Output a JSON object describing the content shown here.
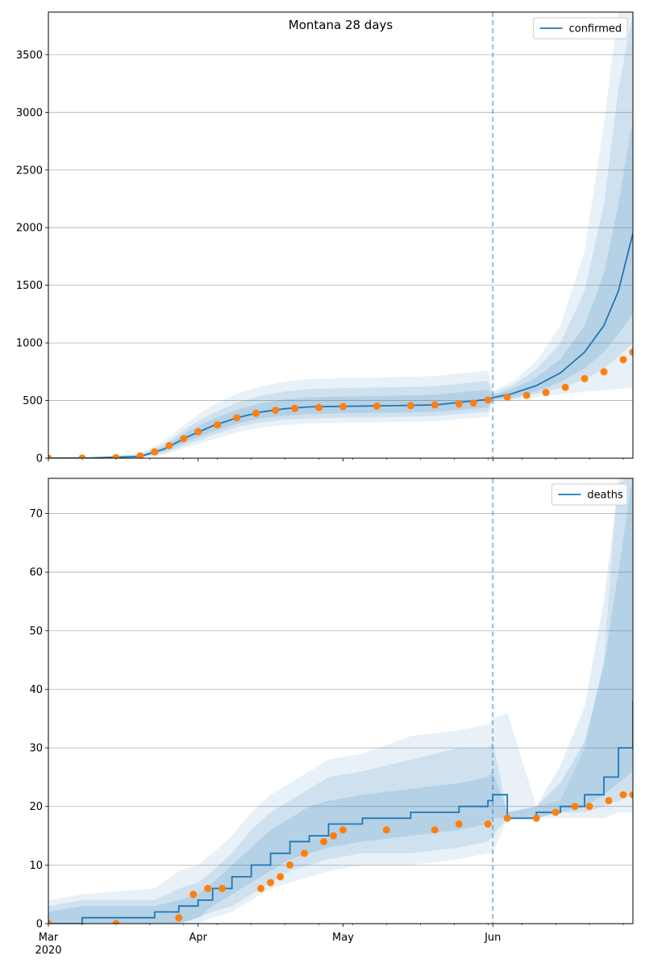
{
  "chart_data": [
    {
      "type": "line",
      "title": "Montana 28 days",
      "xlabel": "",
      "ylabel": "",
      "x_range": [
        "2020-03-01",
        "2020-06-30"
      ],
      "ylim": [
        0,
        3870
      ],
      "yticks": [
        0,
        500,
        1000,
        1500,
        2000,
        2500,
        3000,
        3500
      ],
      "grid": "horizontal",
      "legend": {
        "position": "top-right",
        "entries": [
          "confirmed"
        ]
      },
      "forecast_start": "2020-06-01",
      "series": [
        {
          "name": "confirmed",
          "kind": "line",
          "color": "#1f77b4",
          "x": [
            "2020-03-01",
            "2020-03-10",
            "2020-03-20",
            "2020-03-25",
            "2020-03-30",
            "2020-04-04",
            "2020-04-09",
            "2020-04-14",
            "2020-04-19",
            "2020-04-24",
            "2020-05-01",
            "2020-05-10",
            "2020-05-20",
            "2020-05-31",
            "2020-06-01",
            "2020-06-05",
            "2020-06-10",
            "2020-06-15",
            "2020-06-20",
            "2020-06-24",
            "2020-06-27",
            "2020-06-30"
          ],
          "values": [
            0,
            2,
            15,
            80,
            190,
            280,
            350,
            400,
            430,
            445,
            450,
            455,
            462,
            510,
            525,
            560,
            630,
            740,
            920,
            1150,
            1450,
            1950
          ],
          "bands": [
            {
              "upper": [
                10,
                12,
                40,
                150,
                320,
                460,
                560,
                620,
                665,
                685,
                695,
                702,
                712,
                760,
                580,
                660,
                840,
                1150,
                1800,
                2900,
                3870,
                3870
              ],
              "lower": [
                0,
                0,
                2,
                30,
                100,
                160,
                225,
                265,
                290,
                300,
                308,
                312,
                322,
                360,
                490,
                500,
                530,
                555,
                575,
                590,
                600,
                610
              ]
            },
            {
              "upper": [
                6,
                8,
                30,
                120,
                270,
                390,
                480,
                540,
                580,
                600,
                608,
                614,
                624,
                670,
                560,
                630,
                770,
                1000,
                1450,
                2200,
                3200,
                3870
              ],
              "lower": [
                0,
                0,
                5,
                45,
                125,
                200,
                270,
                310,
                335,
                345,
                352,
                356,
                366,
                405,
                500,
                515,
                560,
                610,
                680,
                780,
                880,
                1000
              ]
            },
            {
              "upper": [
                3,
                5,
                22,
                100,
                235,
                340,
                420,
                475,
                510,
                528,
                535,
                540,
                550,
                595,
                545,
                600,
                700,
                860,
                1150,
                1600,
                2200,
                2950
              ],
              "lower": [
                0,
                0,
                8,
                60,
                150,
                230,
                300,
                345,
                370,
                382,
                390,
                394,
                402,
                440,
                510,
                525,
                580,
                660,
                780,
                920,
                1080,
                1250
              ]
            }
          ]
        },
        {
          "name": "",
          "kind": "points",
          "color": "#ff7f0e",
          "x": [
            "2020-03-01",
            "2020-03-08",
            "2020-03-15",
            "2020-03-20",
            "2020-03-23",
            "2020-03-26",
            "2020-03-29",
            "2020-04-01",
            "2020-04-05",
            "2020-04-09",
            "2020-04-13",
            "2020-04-17",
            "2020-04-21",
            "2020-04-26",
            "2020-05-01",
            "2020-05-08",
            "2020-05-15",
            "2020-05-20",
            "2020-05-25",
            "2020-05-28",
            "2020-05-31",
            "2020-06-04",
            "2020-06-08",
            "2020-06-12",
            "2020-06-16",
            "2020-06-20",
            "2020-06-24",
            "2020-06-28",
            "2020-06-30"
          ],
          "values": [
            0,
            1,
            5,
            20,
            55,
            110,
            170,
            230,
            290,
            350,
            390,
            415,
            432,
            440,
            448,
            452,
            456,
            462,
            470,
            478,
            505,
            530,
            545,
            570,
            615,
            690,
            750,
            855,
            920
          ]
        }
      ]
    },
    {
      "type": "line",
      "title": "",
      "xlabel": "",
      "ylabel": "",
      "x_range": [
        "2020-03-01",
        "2020-06-30"
      ],
      "ylim": [
        0,
        76
      ],
      "yticks": [
        0,
        10,
        20,
        30,
        40,
        50,
        60,
        70
      ],
      "xticks": [
        {
          "date": "2020-03-01",
          "label": "Mar",
          "sublabel": "2020"
        },
        {
          "date": "2020-04-01",
          "label": "Apr"
        },
        {
          "date": "2020-05-01",
          "label": "May"
        },
        {
          "date": "2020-06-01",
          "label": "Jun"
        }
      ],
      "grid": "horizontal",
      "legend": {
        "position": "top-right",
        "entries": [
          "deaths"
        ]
      },
      "forecast_start": "2020-06-01",
      "series": [
        {
          "name": "deaths",
          "kind": "step",
          "color": "#1f77b4",
          "x": [
            "2020-03-01",
            "2020-03-08",
            "2020-03-23",
            "2020-03-28",
            "2020-04-01",
            "2020-04-04",
            "2020-04-08",
            "2020-04-12",
            "2020-04-16",
            "2020-04-20",
            "2020-04-24",
            "2020-04-28",
            "2020-05-05",
            "2020-05-15",
            "2020-05-25",
            "2020-05-31",
            "2020-06-01",
            "2020-06-04",
            "2020-06-10",
            "2020-06-15",
            "2020-06-20",
            "2020-06-24",
            "2020-06-27",
            "2020-06-30"
          ],
          "values": [
            0,
            1,
            2,
            3,
            4,
            6,
            8,
            10,
            12,
            14,
            15,
            17,
            18,
            19,
            20,
            21,
            22,
            18,
            19,
            20,
            22,
            25,
            30,
            38
          ],
          "bands": [
            {
              "upper": [
                4,
                5,
                6,
                9,
                10,
                12,
                15,
                19,
                22,
                24,
                26,
                28,
                29,
                32,
                33,
                34,
                35,
                36,
                20,
                21,
                30,
                45,
                77,
                77
              ],
              "lower": [
                0,
                0,
                0,
                0,
                0,
                1,
                2,
                4,
                6,
                7,
                8,
                9,
                10,
                10,
                11,
                12,
                12,
                18,
                18,
                18,
                18,
                18,
                19,
                19
              ]
            },
            {
              "upper": [
                3,
                4,
                4,
                6,
                7,
                9,
                12,
                16,
                19,
                21,
                23,
                25,
                26,
                28,
                30,
                30,
                31,
                19,
                20,
                27,
                37,
                55,
                75,
                77
              ],
              "lower": [
                0,
                0,
                0,
                0,
                1,
                2,
                3,
                5,
                7,
                9,
                10,
                11,
                12,
                12,
                13,
                14,
                15,
                18,
                18,
                19,
                19,
                20,
                21,
                22
              ]
            },
            {
              "upper": [
                2,
                3,
                3,
                4,
                5,
                7,
                10,
                13,
                16,
                18,
                20,
                21,
                22,
                23,
                24,
                25,
                26,
                19,
                20,
                24,
                31,
                44,
                60,
                77
              ],
              "lower": [
                0,
                0,
                0,
                0,
                1,
                3,
                5,
                7,
                9,
                11,
                12,
                13,
                14,
                15,
                16,
                17,
                18,
                18,
                18,
                19,
                20,
                22,
                24,
                26
              ]
            }
          ]
        },
        {
          "name": "",
          "kind": "points",
          "color": "#ff7f0e",
          "x": [
            "2020-03-01",
            "2020-03-15",
            "2020-03-28",
            "2020-03-31",
            "2020-04-03",
            "2020-04-06",
            "2020-04-14",
            "2020-04-16",
            "2020-04-18",
            "2020-04-20",
            "2020-04-23",
            "2020-04-27",
            "2020-04-29",
            "2020-05-01",
            "2020-05-10",
            "2020-05-20",
            "2020-05-25",
            "2020-05-31",
            "2020-06-04",
            "2020-06-10",
            "2020-06-14",
            "2020-06-18",
            "2020-06-21",
            "2020-06-25",
            "2020-06-28",
            "2020-06-30"
          ],
          "values": [
            0,
            0,
            1,
            5,
            6,
            6,
            6,
            7,
            8,
            10,
            12,
            14,
            15,
            16,
            16,
            16,
            17,
            17,
            18,
            18,
            19,
            20,
            20,
            21,
            22,
            22
          ]
        }
      ]
    }
  ]
}
